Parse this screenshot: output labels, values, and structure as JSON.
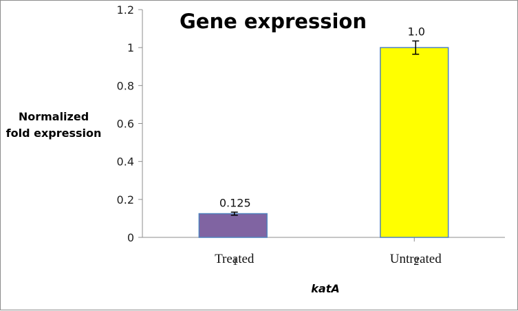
{
  "chart_data": {
    "type": "bar",
    "title": "Gene expression",
    "ylabel_lines": [
      "Normalized",
      "fold expression"
    ],
    "xlabel": "katA",
    "categories": [
      "Treated",
      "Untreated"
    ],
    "category_index_labels": [
      "1",
      "2"
    ],
    "values": [
      0.125,
      1.0
    ],
    "data_labels": [
      "0.125",
      "1.0"
    ],
    "error": [
      0.008,
      0.035
    ],
    "colors": [
      "#8064a2",
      "#ffff00"
    ],
    "bar_edge_color": "#4f81bd",
    "ylim": [
      0,
      1.2
    ],
    "yticks": [
      0,
      0.2,
      0.4,
      0.6,
      0.8,
      1,
      1.2
    ],
    "ytick_labels": [
      "0",
      "0.2",
      "0.4",
      "0.6",
      "0.8",
      "1",
      "1.2"
    ],
    "grid": false,
    "legend": "none"
  }
}
